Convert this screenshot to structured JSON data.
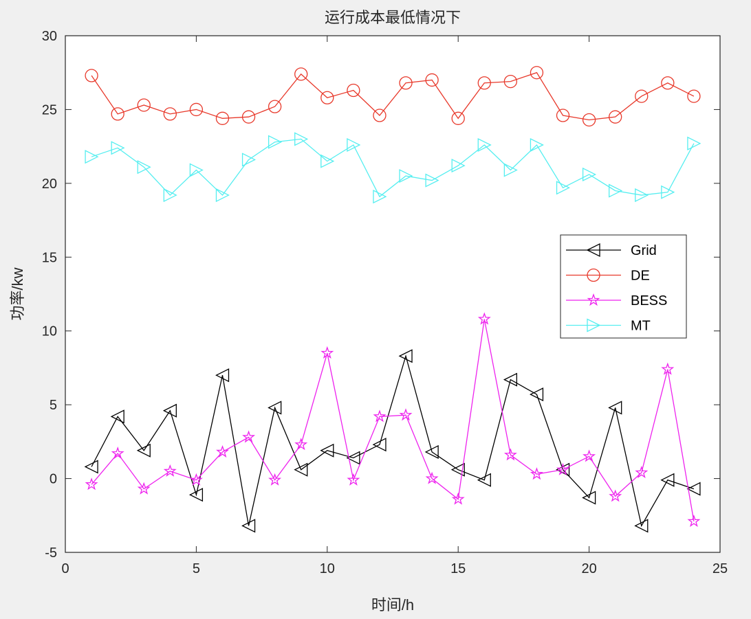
{
  "chart_data": {
    "type": "line",
    "title": "运行成本最低情况下",
    "xlabel": "时间/h",
    "ylabel": "功率/kw",
    "xlim": [
      0,
      25
    ],
    "ylim": [
      -5,
      30
    ],
    "xticks": [
      "0",
      "5",
      "10",
      "15",
      "20",
      "25"
    ],
    "yticks": [
      "-5",
      "0",
      "5",
      "10",
      "15",
      "20",
      "25",
      "30"
    ],
    "grid": false,
    "legend_position": "right-middle",
    "x": [
      1,
      2,
      3,
      4,
      5,
      6,
      7,
      8,
      9,
      10,
      11,
      12,
      13,
      14,
      15,
      16,
      17,
      18,
      19,
      20,
      21,
      22,
      23,
      24
    ],
    "series": [
      {
        "name": "Grid",
        "color": "#000000",
        "marker": "triangle-left",
        "values": [
          0.8,
          4.2,
          1.9,
          4.6,
          -1.1,
          7.0,
          -3.2,
          4.8,
          0.6,
          1.9,
          1.4,
          2.3,
          8.3,
          1.8,
          0.6,
          -0.1,
          6.7,
          5.7,
          0.6,
          -1.3,
          4.8,
          -3.2,
          -0.1,
          -0.7
        ]
      },
      {
        "name": "DE",
        "color": "#e8392b",
        "marker": "circle",
        "values": [
          27.3,
          24.7,
          25.3,
          24.7,
          25.0,
          24.4,
          24.5,
          25.2,
          27.4,
          25.8,
          26.3,
          24.6,
          26.8,
          27.0,
          24.4,
          26.8,
          26.9,
          27.5,
          24.6,
          24.3,
          24.5,
          25.9,
          26.8,
          25.9
        ]
      },
      {
        "name": "BESS",
        "color": "#ee22ee",
        "marker": "pentagram",
        "values": [
          -0.4,
          1.7,
          -0.7,
          0.5,
          -0.1,
          1.8,
          2.8,
          -0.1,
          2.3,
          8.5,
          -0.1,
          4.2,
          4.3,
          0.0,
          -1.4,
          10.8,
          1.6,
          0.3,
          0.6,
          1.5,
          -1.2,
          0.4,
          7.4,
          -2.9
        ]
      },
      {
        "name": "MT",
        "color": "#55eef0",
        "marker": "triangle-right",
        "values": [
          21.8,
          22.4,
          21.1,
          19.2,
          20.9,
          19.2,
          21.6,
          22.8,
          23.0,
          21.5,
          22.6,
          19.1,
          20.5,
          20.2,
          21.2,
          22.6,
          20.9,
          22.6,
          19.7,
          20.6,
          19.5,
          19.2,
          19.4,
          22.7
        ]
      }
    ]
  }
}
